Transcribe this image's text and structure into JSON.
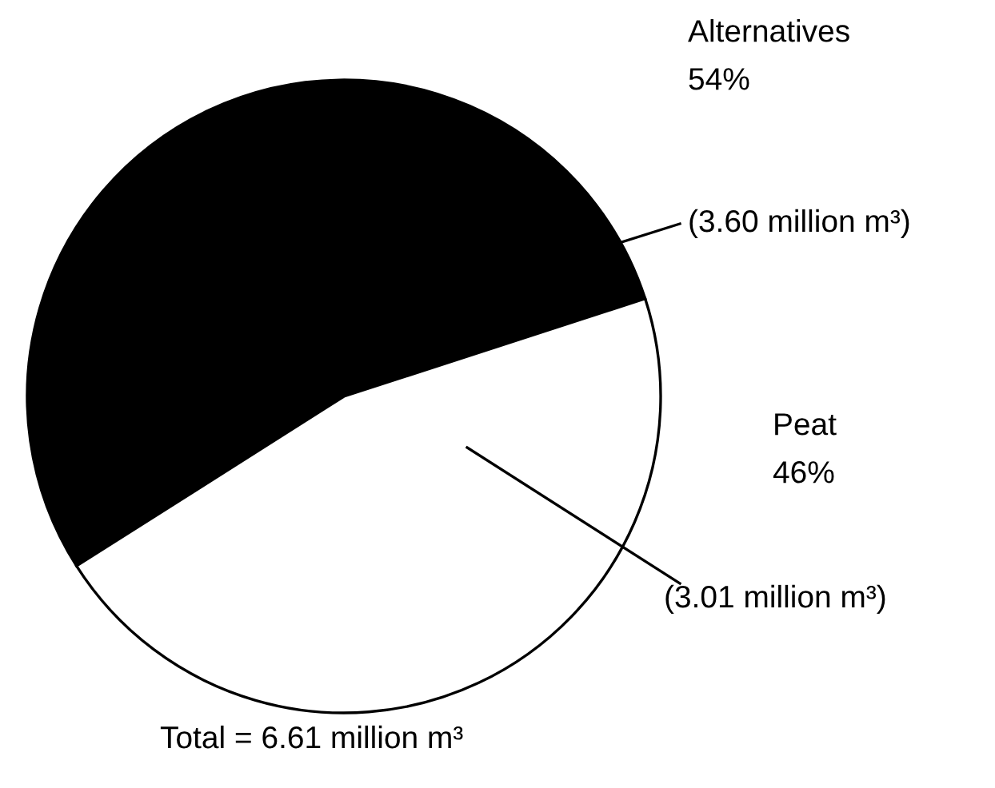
{
  "chart_data": {
    "type": "pie",
    "categories": [
      "Alternatives",
      "Peat"
    ],
    "values": [
      54,
      46
    ],
    "value_labels": [
      "54%",
      "46%"
    ],
    "colors": [
      "#000000",
      "#ffffff"
    ],
    "annotations": [
      "(3.60 million m³)",
      "(3.01 million m³)",
      "Total = 6.61 million m³"
    ]
  }
}
